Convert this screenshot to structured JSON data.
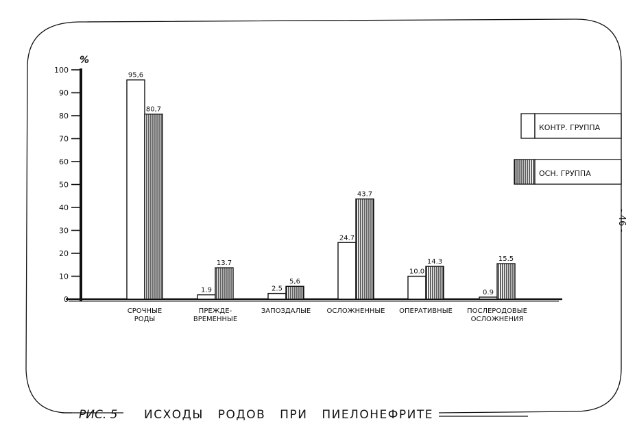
{
  "page_number": "- 46 -",
  "caption": {
    "label": "РИС. 5",
    "title": "ИСХОДЫ РОДОВ ПРИ ПИЕЛОНЕФРИТЕ"
  },
  "chart_data": {
    "type": "bar",
    "ylabel": "%",
    "ylim": [
      0,
      100
    ],
    "y_ticks": [
      "0",
      "10",
      "20",
      "30",
      "40",
      "50",
      "60",
      "70",
      "80",
      "90",
      "100"
    ],
    "categories": [
      [
        "СРОЧНЫЕ",
        "РОДЫ"
      ],
      [
        "ПРЕЖДЕ-",
        "ВРЕМЕННЫЕ"
      ],
      [
        "ЗАПОЗДАЛЫЕ"
      ],
      [
        "ОСЛОЖНЕННЫЕ"
      ],
      [
        "ОПЕРАТИВНЫЕ"
      ],
      [
        "ПОСЛЕРОДОВЫЕ",
        "ОСЛОЖНЕНИЯ"
      ]
    ],
    "series": [
      {
        "name": "КОНТР. ГРУППА",
        "pattern": "plain",
        "values": [
          95.6,
          1.9,
          2.5,
          24.7,
          10.0,
          0.9
        ],
        "labels": [
          "95,6",
          "1.9",
          "2.5",
          "24.7",
          "10.0",
          "0.9"
        ]
      },
      {
        "name": "ОСН. ГРУППА",
        "pattern": "hatched",
        "values": [
          80.7,
          13.7,
          5.6,
          43.7,
          14.3,
          15.5
        ],
        "labels": [
          "80,7",
          "13.7",
          "5,6",
          "43.7",
          "14.3",
          "15.5"
        ]
      }
    ],
    "legend_position": "right",
    "grid": false
  }
}
